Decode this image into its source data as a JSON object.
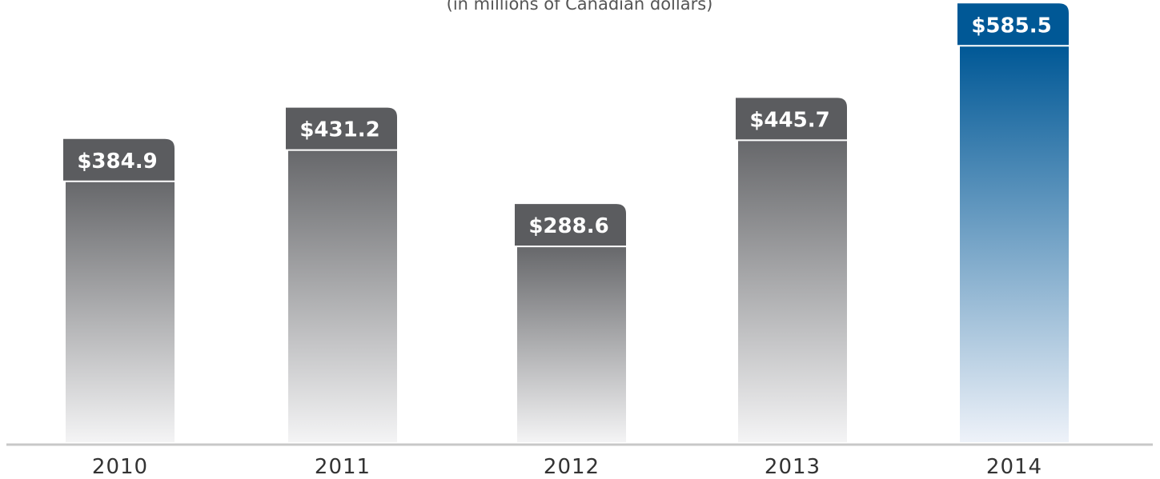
{
  "chart_data": {
    "type": "bar",
    "subtitle": "(in millions of Canadian dollars)",
    "categories": [
      "2010",
      "2011",
      "2012",
      "2013",
      "2014"
    ],
    "values": [
      384.9,
      431.2,
      288.6,
      445.7,
      585.5
    ],
    "value_labels": [
      "$384.9",
      "$431.2",
      "$288.6",
      "$445.7",
      "$585.5"
    ],
    "highlight_category": "2014",
    "ylim": [
      0,
      600
    ],
    "grid": false,
    "legend": "none",
    "colors": {
      "bar_top": "#67686b",
      "bar_bottom": "#f4f4f5",
      "highlight_top": "#005896",
      "highlight_bottom": "#eef2f9",
      "label_bg": "#5b5c5f",
      "highlight_label_bg": "#005896",
      "baseline": "#c8c8c8"
    }
  }
}
